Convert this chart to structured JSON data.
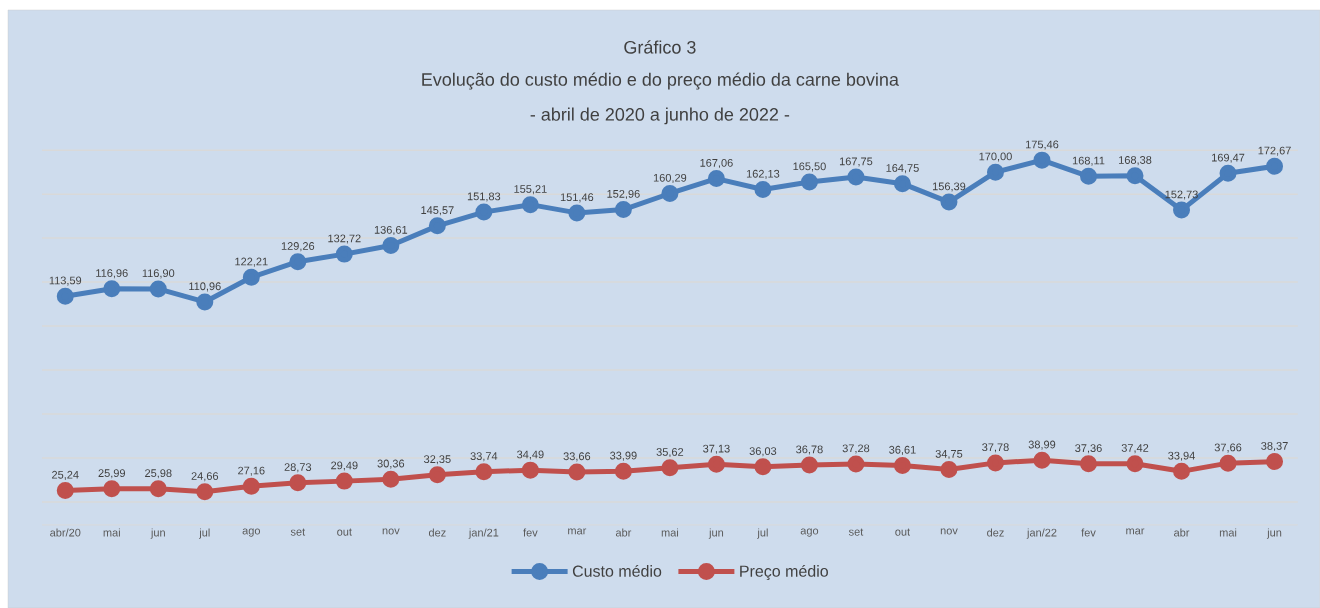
{
  "chart_data": {
    "type": "line",
    "title": "Gráfico 3",
    "subtitle": "Evolução do custo médio e do preço médio da carne bovina",
    "annotations": [
      "- abril de 2020 a junho de 2022 -"
    ],
    "categories": [
      "abr/20",
      "mai",
      "jun",
      "jul",
      "ago",
      "set",
      "out",
      "nov",
      "dez",
      "jan/21",
      "fev",
      "mar",
      "abr",
      "mai",
      "jun",
      "jul",
      "ago",
      "set",
      "out",
      "nov",
      "dez",
      "jan/22",
      "fev",
      "mar",
      "abr",
      "mai",
      "jun"
    ],
    "series": [
      {
        "name": "Custo médio",
        "color": "#4a7ebb",
        "values": [
          113.59,
          116.96,
          116.9,
          110.96,
          122.21,
          129.26,
          132.72,
          136.61,
          145.57,
          151.83,
          155.21,
          151.46,
          152.96,
          160.29,
          167.06,
          162.13,
          165.5,
          167.75,
          164.75,
          156.39,
          170.0,
          175.46,
          168.11,
          168.38,
          152.73,
          169.47,
          172.67
        ],
        "value_labels": [
          "113,59",
          "116,96",
          "116,90",
          "110,96",
          "122,21",
          "129,26",
          "132,72",
          "136,61",
          "145,57",
          "151,83",
          "155,21",
          "151,46",
          "152,96",
          "160,29",
          "167,06",
          "162,13",
          "165,50",
          "167,75",
          "164,75",
          "156,39",
          "170,00",
          "175,46",
          "168,11",
          "168,38",
          "152,73",
          "169,47",
          "172,67"
        ]
      },
      {
        "name": "Preço médio",
        "color": "#c0504d",
        "values": [
          25.24,
          25.99,
          25.98,
          24.66,
          27.16,
          28.73,
          29.49,
          30.36,
          32.35,
          33.74,
          34.49,
          33.66,
          33.99,
          35.62,
          37.13,
          36.03,
          36.78,
          37.28,
          36.61,
          34.75,
          37.78,
          38.99,
          37.36,
          37.42,
          33.94,
          37.66,
          38.37
        ],
        "value_labels": [
          "25,24",
          "25,99",
          "25,98",
          "24,66",
          "27,16",
          "28,73",
          "29,49",
          "30,36",
          "32,35",
          "33,74",
          "34,49",
          "33,66",
          "33,99",
          "35,62",
          "37,13",
          "36,03",
          "36,78",
          "37,28",
          "36,61",
          "34,75",
          "37,78",
          "38,99",
          "37,36",
          "37,42",
          "33,94",
          "37,66",
          "38,37"
        ]
      }
    ],
    "tick_labels": "x",
    "grid": "y",
    "legend": "bottom",
    "marker": "circle",
    "line_style": "solid"
  }
}
